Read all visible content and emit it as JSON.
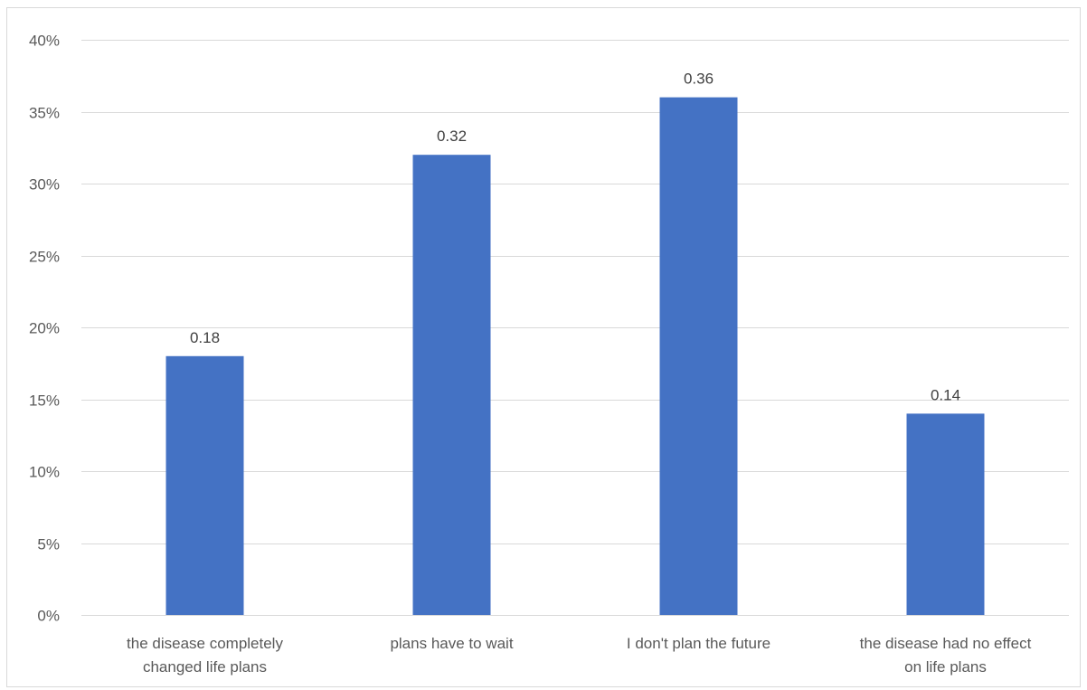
{
  "chart_data": {
    "type": "bar",
    "title": "",
    "xlabel": "",
    "ylabel": "",
    "categories": [
      [
        "the disease completely",
        "changed life plans"
      ],
      [
        "plans have to wait"
      ],
      [
        "I don't plan the future"
      ],
      [
        "the disease had no effect",
        "on life plans"
      ]
    ],
    "values": [
      0.18,
      0.32,
      0.36,
      0.14
    ],
    "data_labels": [
      "0.18",
      "0.32",
      "0.36",
      "0.14"
    ],
    "ylim": [
      0,
      0.4
    ],
    "y_ticks": [
      0,
      0.05,
      0.1,
      0.15,
      0.2,
      0.25,
      0.3,
      0.35,
      0.4
    ],
    "y_tick_labels": [
      "0%",
      "5%",
      "10%",
      "15%",
      "20%",
      "25%",
      "30%",
      "35%",
      "40%"
    ],
    "grid": true,
    "legend": "none",
    "bar_color": "#4472C4",
    "grid_color": "#d9d9d9"
  }
}
